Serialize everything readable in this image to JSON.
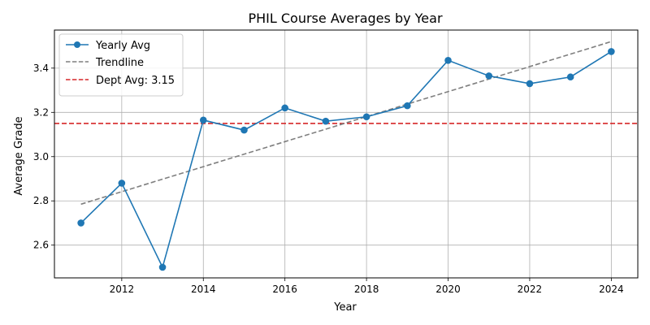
{
  "chart_data": {
    "type": "line",
    "title": "PHIL Course Averages by Year",
    "xlabel": "Year",
    "ylabel": "Average Grade",
    "x": [
      2011,
      2012,
      2013,
      2014,
      2015,
      2016,
      2017,
      2018,
      2019,
      2020,
      2021,
      2022,
      2023,
      2024
    ],
    "series": [
      {
        "name": "Yearly Avg",
        "color": "#1f77b4",
        "style": "solid",
        "marker": "circle",
        "values": [
          2.7,
          2.88,
          2.5,
          3.165,
          3.12,
          3.22,
          3.16,
          3.18,
          3.23,
          3.435,
          3.365,
          3.33,
          3.36,
          3.475
        ]
      },
      {
        "name": "Trendline",
        "color": "#7f7f7f",
        "style": "dashed",
        "marker": "none",
        "x": [
          2011,
          2024
        ],
        "values": [
          2.785,
          3.52
        ]
      }
    ],
    "reference_lines": [
      {
        "name": "Dept Avg: 3.15",
        "color": "#d62728",
        "style": "dashed",
        "y": 3.15
      }
    ],
    "x_ticks": [
      2012,
      2014,
      2016,
      2018,
      2020,
      2022,
      2024
    ],
    "y_ticks": [
      2.6,
      2.8,
      3.0,
      3.2,
      3.4
    ],
    "x_tick_labels": [
      "2012",
      "2014",
      "2016",
      "2018",
      "2020",
      "2022",
      "2024"
    ],
    "y_tick_labels": [
      "2.6",
      "2.8",
      "3.0",
      "3.2",
      "3.4"
    ],
    "xlim": [
      2010.35,
      2024.65
    ],
    "ylim": [
      2.452,
      3.572
    ],
    "grid": true,
    "legend_position": "top-left",
    "legend": [
      "Yearly Avg",
      "Trendline",
      "Dept Avg: 3.15"
    ]
  }
}
